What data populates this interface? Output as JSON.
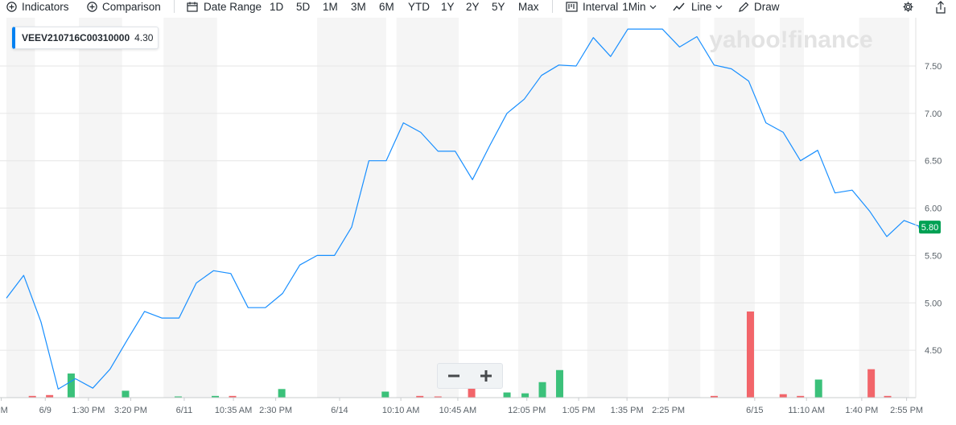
{
  "toolbar": {
    "indicators_label": "Indicators",
    "comparison_label": "Comparison",
    "date_range_label": "Date Range",
    "ranges": [
      "1D",
      "5D",
      "1M",
      "3M",
      "6M",
      "YTD",
      "1Y",
      "2Y",
      "5Y",
      "Max"
    ],
    "interval_label": "Interval",
    "interval_value": "1Min",
    "line_label": "Line",
    "draw_label": "Draw",
    "icons": [
      "plus-circle-icon",
      "calendar-icon",
      "bar-interval-icon",
      "line-chart-icon",
      "pencil-icon",
      "gear-icon",
      "share-icon"
    ]
  },
  "legend": {
    "symbol": "VEEV210716C00310000",
    "value": "4.30",
    "accent_color": "#0081f2"
  },
  "watermark": "yahoo!finance",
  "zoom": {
    "minus_label": "−",
    "plus_label": "+"
  },
  "colors": {
    "line": "#188fff",
    "volume_up": "#3bc17a",
    "volume_down": "#f2656a",
    "current_price_bg": "#00a154",
    "band": "#f5f5f5"
  },
  "chart_data": {
    "type": "line",
    "series": [
      {
        "name": "VEEV210716C00310000",
        "values": [
          5.05,
          5.29,
          4.8,
          4.09,
          4.2,
          4.1,
          4.3,
          4.61,
          4.91,
          4.84,
          4.84,
          5.21,
          5.34,
          5.31,
          4.95,
          4.95,
          5.1,
          5.4,
          5.5,
          5.5,
          5.8,
          6.5,
          6.5,
          6.9,
          6.8,
          6.6,
          6.6,
          6.3,
          6.66,
          7.0,
          7.15,
          7.4,
          7.51,
          7.5,
          7.8,
          7.6,
          7.89,
          7.89,
          7.89,
          7.7,
          7.81,
          7.51,
          7.47,
          7.34,
          6.9,
          6.8,
          6.5,
          6.61,
          6.16,
          6.19,
          5.97,
          5.7,
          5.87,
          5.8
        ]
      }
    ],
    "volume": [
      {
        "x": 1.5,
        "value": 0.02,
        "dir": "down"
      },
      {
        "x": 2.5,
        "value": 0.03,
        "dir": "down"
      },
      {
        "x": 3.75,
        "value": 0.28,
        "dir": "up"
      },
      {
        "x": 6.9,
        "value": 0.08,
        "dir": "up"
      },
      {
        "x": 9.95,
        "value": 0.01,
        "dir": "up"
      },
      {
        "x": 12.1,
        "value": 0.02,
        "dir": "up"
      },
      {
        "x": 13.1,
        "value": 0.02,
        "dir": "down"
      },
      {
        "x": 15.95,
        "value": 0.1,
        "dir": "up"
      },
      {
        "x": 21.95,
        "value": 0.07,
        "dir": "up"
      },
      {
        "x": 23.95,
        "value": 0.02,
        "dir": "down"
      },
      {
        "x": 25,
        "value": 0.01,
        "dir": "down"
      },
      {
        "x": 26.95,
        "value": 0.2,
        "dir": "down"
      },
      {
        "x": 29,
        "value": 0.06,
        "dir": "up"
      },
      {
        "x": 30.05,
        "value": 0.05,
        "dir": "up"
      },
      {
        "x": 31.05,
        "value": 0.18,
        "dir": "up"
      },
      {
        "x": 32.05,
        "value": 0.32,
        "dir": "up"
      },
      {
        "x": 41,
        "value": 0.02,
        "dir": "down"
      },
      {
        "x": 43.1,
        "value": 1.0,
        "dir": "down"
      },
      {
        "x": 45,
        "value": 0.04,
        "dir": "down"
      },
      {
        "x": 46,
        "value": 0.02,
        "dir": "down"
      },
      {
        "x": 47.05,
        "value": 0.21,
        "dir": "up"
      },
      {
        "x": 50.1,
        "value": 0.33,
        "dir": "down"
      },
      {
        "x": 51.05,
        "value": 0.02,
        "dir": "down"
      }
    ],
    "x_ticks": [
      {
        "x": -0.3,
        "label": "PM"
      },
      {
        "x": 2.25,
        "label": "6/9"
      },
      {
        "x": 4.75,
        "label": "1:30 PM"
      },
      {
        "x": 7.2,
        "label": "3:20 PM"
      },
      {
        "x": 10.3,
        "label": "6/11"
      },
      {
        "x": 13.15,
        "label": "10:35 AM"
      },
      {
        "x": 15.6,
        "label": "2:30 PM"
      },
      {
        "x": 19.3,
        "label": "6/14"
      },
      {
        "x": 22.85,
        "label": "10:10 AM"
      },
      {
        "x": 26.15,
        "label": "10:45 AM"
      },
      {
        "x": 30.15,
        "label": "12:05 PM"
      },
      {
        "x": 33.15,
        "label": "1:05 PM"
      },
      {
        "x": 35.95,
        "label": "1:35 PM"
      },
      {
        "x": 38.35,
        "label": "2:25 PM"
      },
      {
        "x": 43.35,
        "label": "6/15"
      },
      {
        "x": 46.35,
        "label": "11:10 AM"
      },
      {
        "x": 49.55,
        "label": "1:40 PM"
      },
      {
        "x": 52.15,
        "label": "2:55 PM"
      }
    ],
    "y_ticks": [
      "4.50",
      "5.00",
      "5.50",
      "6.00",
      "6.50",
      "7.00",
      "7.50"
    ],
    "ylim": [
      4.0,
      7.95
    ],
    "current_price": "5.80",
    "bands": [
      [
        0,
        1.65
      ],
      [
        4.2,
        6.7
      ],
      [
        9.1,
        12.2
      ],
      [
        18,
        22
      ],
      [
        22.6,
        26.2
      ],
      [
        29.65,
        32.2
      ],
      [
        33.65,
        36
      ],
      [
        38.35,
        40.2
      ],
      [
        41,
        43.35
      ],
      [
        44.8,
        46.2
      ],
      [
        49.4,
        52.3
      ]
    ],
    "grid": true,
    "legend_position": "top-left"
  }
}
